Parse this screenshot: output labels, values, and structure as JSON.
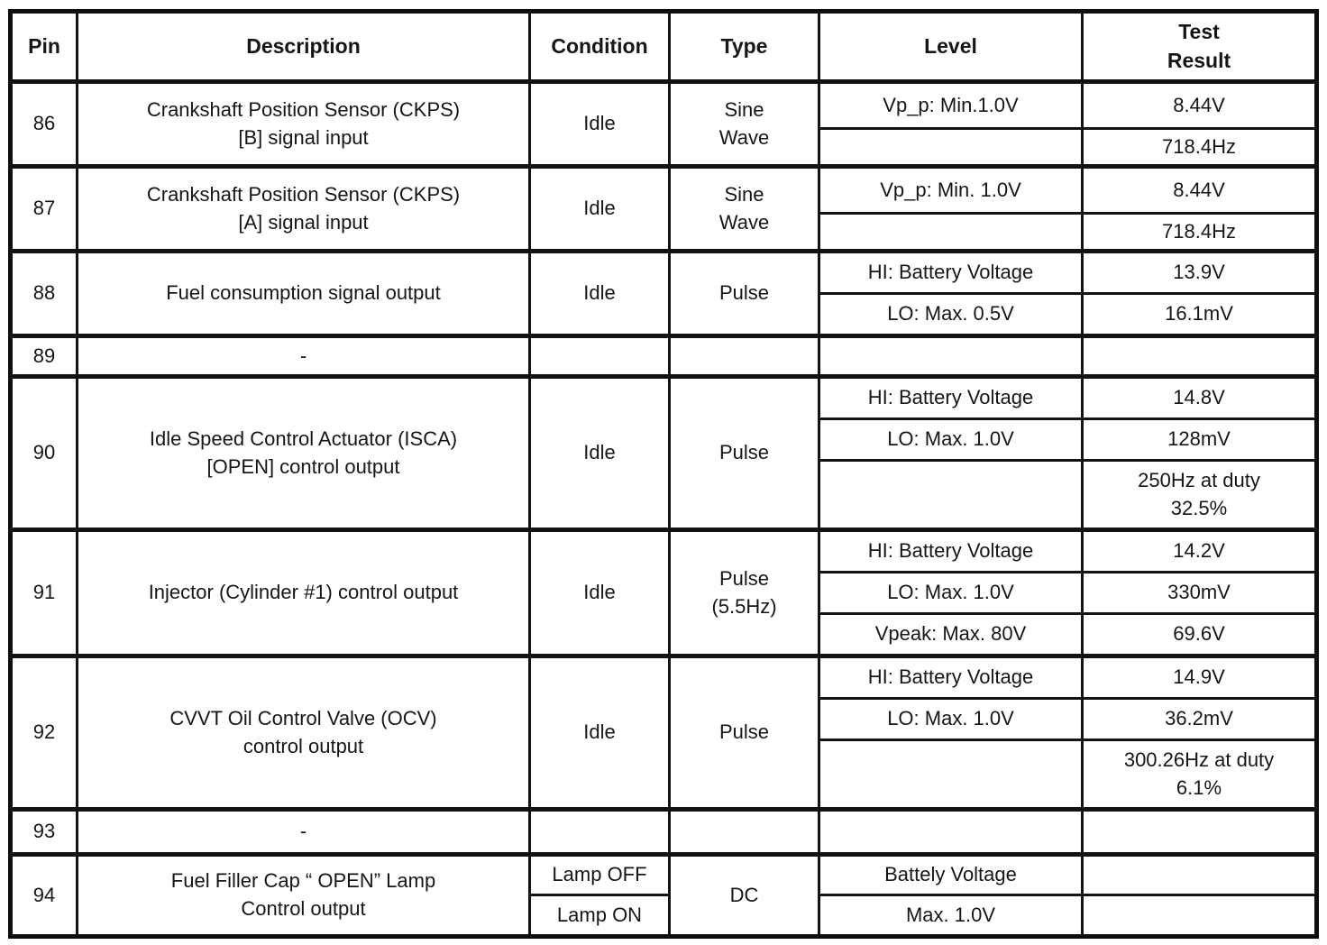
{
  "table": {
    "headers": {
      "pin": "Pin",
      "description": "Description",
      "condition": "Condition",
      "type": "Type",
      "level": "Level",
      "test_result": "Test\nResult"
    },
    "rows": [
      {
        "pin": "86",
        "description": "Crankshaft Position Sensor (CKPS)\n[B] signal input",
        "condition": "Idle",
        "type": "Sine\nWave",
        "sub": [
          {
            "level": "Vp_p: Min.1.0V",
            "result": "8.44V"
          },
          {
            "level": "",
            "result": "718.4Hz"
          }
        ]
      },
      {
        "pin": "87",
        "description": "Crankshaft Position Sensor (CKPS)\n[A] signal input",
        "condition": "Idle",
        "type": "Sine\nWave",
        "sub": [
          {
            "level": "Vp_p: Min. 1.0V",
            "result": "8.44V"
          },
          {
            "level": "",
            "result": "718.4Hz"
          }
        ]
      },
      {
        "pin": "88",
        "description": "Fuel consumption signal output",
        "condition": "Idle",
        "type": "Pulse",
        "sub": [
          {
            "level": "HI: Battery Voltage",
            "result": "13.9V"
          },
          {
            "level": "LO: Max.  0.5V",
            "result": "16.1mV"
          }
        ]
      },
      {
        "pin": "89",
        "description": "-",
        "condition": "",
        "type": "",
        "sub": [
          {
            "level": "",
            "result": ""
          }
        ]
      },
      {
        "pin": "90",
        "description": "Idle Speed Control Actuator (ISCA)\n[OPEN] control output",
        "condition": "Idle",
        "type": "Pulse",
        "sub": [
          {
            "level": "HI: Battery Voltage",
            "result": "14.8V"
          },
          {
            "level": "LO: Max.  1.0V",
            "result": "128mV"
          },
          {
            "level": "",
            "result": "250Hz at duty\n32.5%"
          }
        ]
      },
      {
        "pin": "91",
        "description": "Injector (Cylinder #1) control output",
        "condition": "Idle",
        "type": "Pulse\n(5.5Hz)",
        "sub": [
          {
            "level": "HI: Battery Voltage",
            "result": "14.2V"
          },
          {
            "level": "LO: Max.  1.0V",
            "result": "330mV"
          },
          {
            "level": "Vpeak: Max.  80V",
            "result": "69.6V"
          }
        ]
      },
      {
        "pin": "92",
        "description": "CVVT Oil Control Valve (OCV)\ncontrol output",
        "condition": "Idle",
        "type": "Pulse",
        "sub": [
          {
            "level": "HI: Battery Voltage",
            "result": "14.9V"
          },
          {
            "level": "LO: Max.  1.0V",
            "result": "36.2mV"
          },
          {
            "level": "",
            "result": "300.26Hz at duty\n6.1%"
          }
        ]
      },
      {
        "pin": "93",
        "description": "-",
        "condition": "",
        "type": "",
        "sub": [
          {
            "level": "",
            "result": ""
          }
        ]
      },
      {
        "pin": "94",
        "description": "Fuel Filler Cap “ OPEN”  Lamp\nControl output",
        "conditions": [
          "Lamp OFF",
          "Lamp ON"
        ],
        "type": "DC",
        "sub": [
          {
            "level": "Battely Voltage",
            "result": ""
          },
          {
            "level": "Max.  1.0V",
            "result": ""
          }
        ]
      }
    ]
  }
}
